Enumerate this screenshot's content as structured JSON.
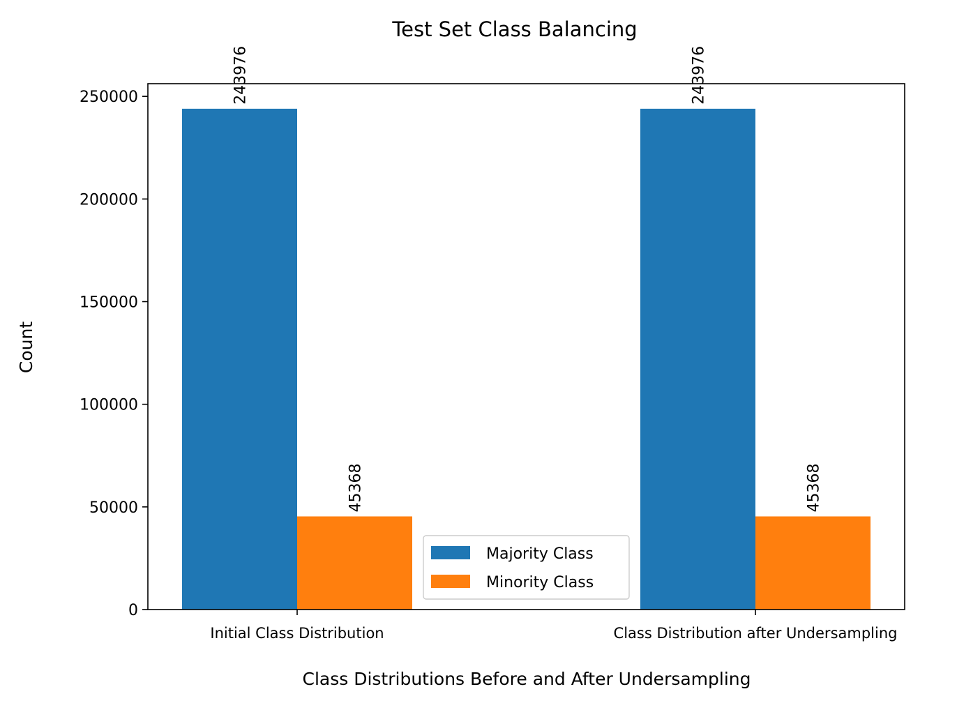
{
  "chart_data": {
    "type": "bar",
    "title": "Test Set Class Balancing",
    "xlabel": "Class Distributions Before and After Undersampling",
    "ylabel": "Count",
    "categories": [
      "Initial Class Distribution",
      "Class Distribution after Undersampling"
    ],
    "series": [
      {
        "name": "Majority Class",
        "color": "#1f77b4",
        "values": [
          243976,
          243976
        ]
      },
      {
        "name": "Minority Class",
        "color": "#ff7f0e",
        "values": [
          45368,
          45368
        ]
      }
    ],
    "data_labels": [
      [
        "243976",
        "243976"
      ],
      [
        "45368",
        "45368"
      ]
    ],
    "ylim": [
      0,
      256173
    ],
    "yticks": [
      0,
      50000,
      100000,
      150000,
      200000,
      250000
    ],
    "ytick_labels": [
      "0",
      "50000",
      "100000",
      "150000",
      "200000",
      "250000"
    ],
    "grid": false,
    "legend_position": "lower-center"
  }
}
